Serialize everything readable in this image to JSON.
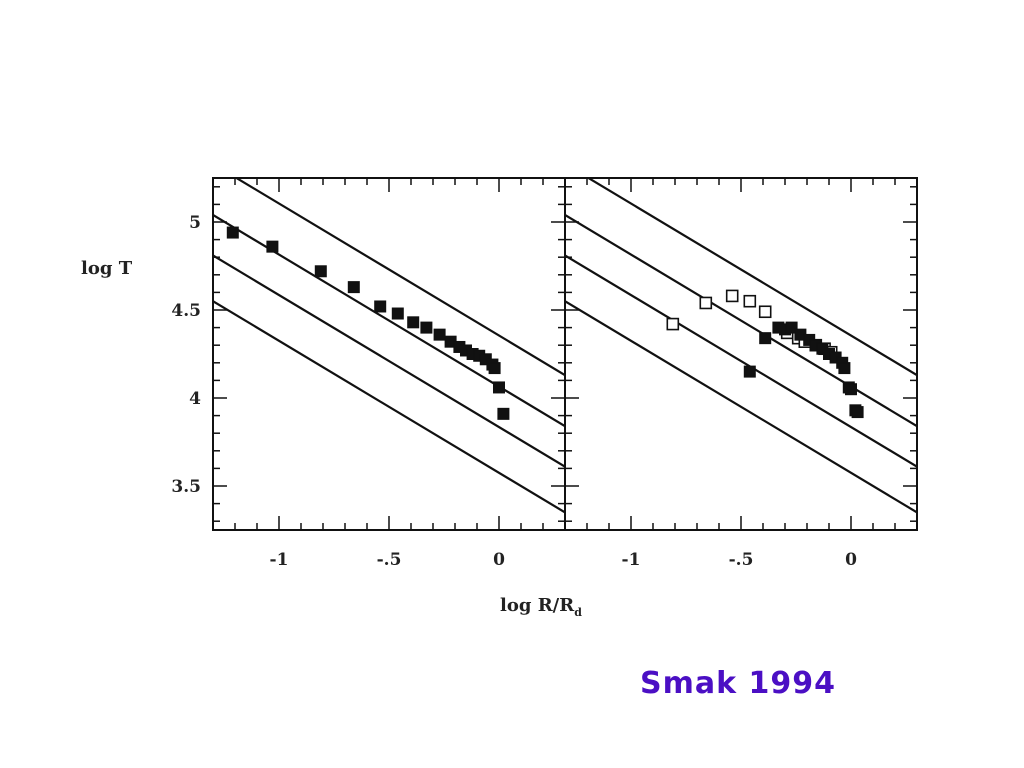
{
  "citation": "Smak 1994",
  "colors": {
    "citation": "#4b0fc4",
    "ink": "#111111",
    "background": "#ffffff"
  },
  "chart_data": [
    {
      "type": "scatter",
      "panel": "left",
      "title": "",
      "xlabel": "log R/R",
      "xlabel_subscript": "d",
      "ylabel": "log T",
      "xlim": [
        -1.3,
        0.3
      ],
      "ylim": [
        3.25,
        5.25
      ],
      "xticks": [
        -1,
        -0.5,
        0
      ],
      "xtick_labels": [
        "-1",
        "-.5",
        "0"
      ],
      "yticks": [
        3.5,
        4,
        4.5,
        5
      ],
      "ytick_labels": [
        "3.5",
        "4",
        "4.5",
        "5"
      ],
      "grid": false,
      "lines": [
        {
          "x": [
            -1.3,
            0.3
          ],
          "y": [
            5.33,
            4.13
          ]
        },
        {
          "x": [
            -1.3,
            0.3
          ],
          "y": [
            5.04,
            3.84
          ]
        },
        {
          "x": [
            -1.3,
            0.3
          ],
          "y": [
            4.81,
            3.61
          ]
        },
        {
          "x": [
            -1.3,
            0.3
          ],
          "y": [
            4.55,
            3.35
          ]
        }
      ],
      "series": [
        {
          "marker": "filled-square",
          "x": [
            -1.21,
            -1.03,
            -0.81,
            -0.66,
            -0.54,
            -0.46,
            -0.39,
            -0.33,
            -0.27,
            -0.22,
            -0.18,
            -0.15,
            -0.12,
            -0.09,
            -0.06,
            -0.03,
            -0.02,
            0.0,
            0.02
          ],
          "y": [
            4.94,
            4.86,
            4.72,
            4.63,
            4.52,
            4.48,
            4.43,
            4.4,
            4.36,
            4.32,
            4.29,
            4.27,
            4.25,
            4.24,
            4.22,
            4.19,
            4.17,
            4.06,
            3.91
          ]
        }
      ]
    },
    {
      "type": "scatter",
      "panel": "right",
      "title": "",
      "xlabel": "",
      "ylabel": "",
      "xlim": [
        -1.3,
        0.3
      ],
      "ylim": [
        3.25,
        5.25
      ],
      "xticks": [
        -1,
        -0.5,
        0
      ],
      "xtick_labels": [
        "-1",
        "-.5",
        "0"
      ],
      "yticks": [
        3.5,
        4,
        4.5,
        5
      ],
      "ytick_labels": [],
      "grid": false,
      "lines": [
        {
          "x": [
            -1.3,
            0.3
          ],
          "y": [
            5.33,
            4.13
          ]
        },
        {
          "x": [
            -1.3,
            0.3
          ],
          "y": [
            5.04,
            3.84
          ]
        },
        {
          "x": [
            -1.3,
            0.3
          ],
          "y": [
            4.81,
            3.61
          ]
        },
        {
          "x": [
            -1.3,
            0.3
          ],
          "y": [
            4.55,
            3.35
          ]
        }
      ],
      "series": [
        {
          "marker": "open-square",
          "x": [
            -0.81,
            -0.66,
            -0.54,
            -0.46,
            -0.39,
            -0.29,
            -0.24,
            -0.21,
            -0.16,
            -0.12,
            -0.09
          ],
          "y": [
            4.42,
            4.54,
            4.58,
            4.55,
            4.49,
            4.37,
            4.34,
            4.32,
            4.3,
            4.28,
            4.26
          ]
        },
        {
          "marker": "filled-square",
          "x": [
            -0.46,
            -0.39,
            -0.33,
            -0.3,
            -0.27,
            -0.23,
            -0.19,
            -0.16,
            -0.13,
            -0.1,
            -0.07,
            -0.04,
            -0.03,
            -0.01,
            0.0,
            0.02,
            0.03
          ],
          "y": [
            4.15,
            4.34,
            4.4,
            4.39,
            4.4,
            4.36,
            4.33,
            4.3,
            4.28,
            4.25,
            4.23,
            4.2,
            4.17,
            4.06,
            4.05,
            3.93,
            3.92
          ]
        }
      ]
    }
  ]
}
